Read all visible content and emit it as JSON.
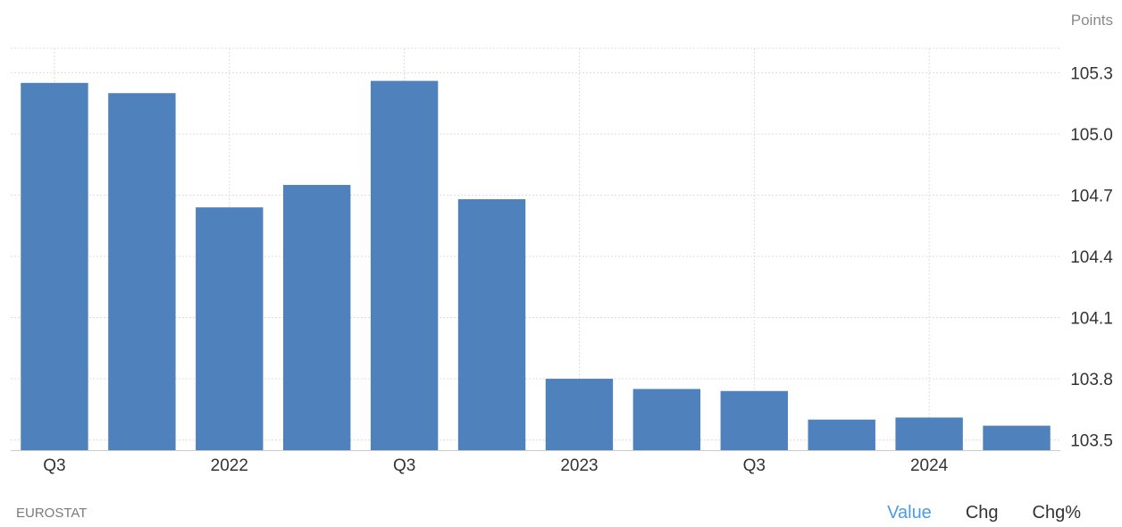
{
  "unit_label": "Points",
  "source": "EUROSTAT",
  "tabs": [
    {
      "label": "Value",
      "active": true
    },
    {
      "label": "Chg",
      "active": false
    },
    {
      "label": "Chg%",
      "active": false
    }
  ],
  "colors": {
    "bar": "#4f81bd",
    "grid": "#dddddd",
    "axis_text": "#333333",
    "active_tab": "#4a9ae8"
  },
  "chart_data": {
    "type": "bar",
    "categories": [
      "Q3",
      "",
      "2022",
      "",
      "Q3",
      "",
      "2023",
      "",
      "Q3",
      "",
      "2024",
      ""
    ],
    "values": [
      105.25,
      105.2,
      104.64,
      104.75,
      105.26,
      104.68,
      103.8,
      103.75,
      103.74,
      103.6,
      103.61,
      103.57
    ],
    "y_ticks": [
      103.5,
      103.8,
      104.1,
      104.4,
      104.7,
      105.0,
      105.3
    ],
    "y_tick_labels": [
      "103.5",
      "103.8",
      "104.1",
      "104.4",
      "104.7",
      "105.0",
      "105.3"
    ],
    "ylim": [
      103.45,
      105.42
    ],
    "y_axis_side": "right",
    "grid": true
  }
}
